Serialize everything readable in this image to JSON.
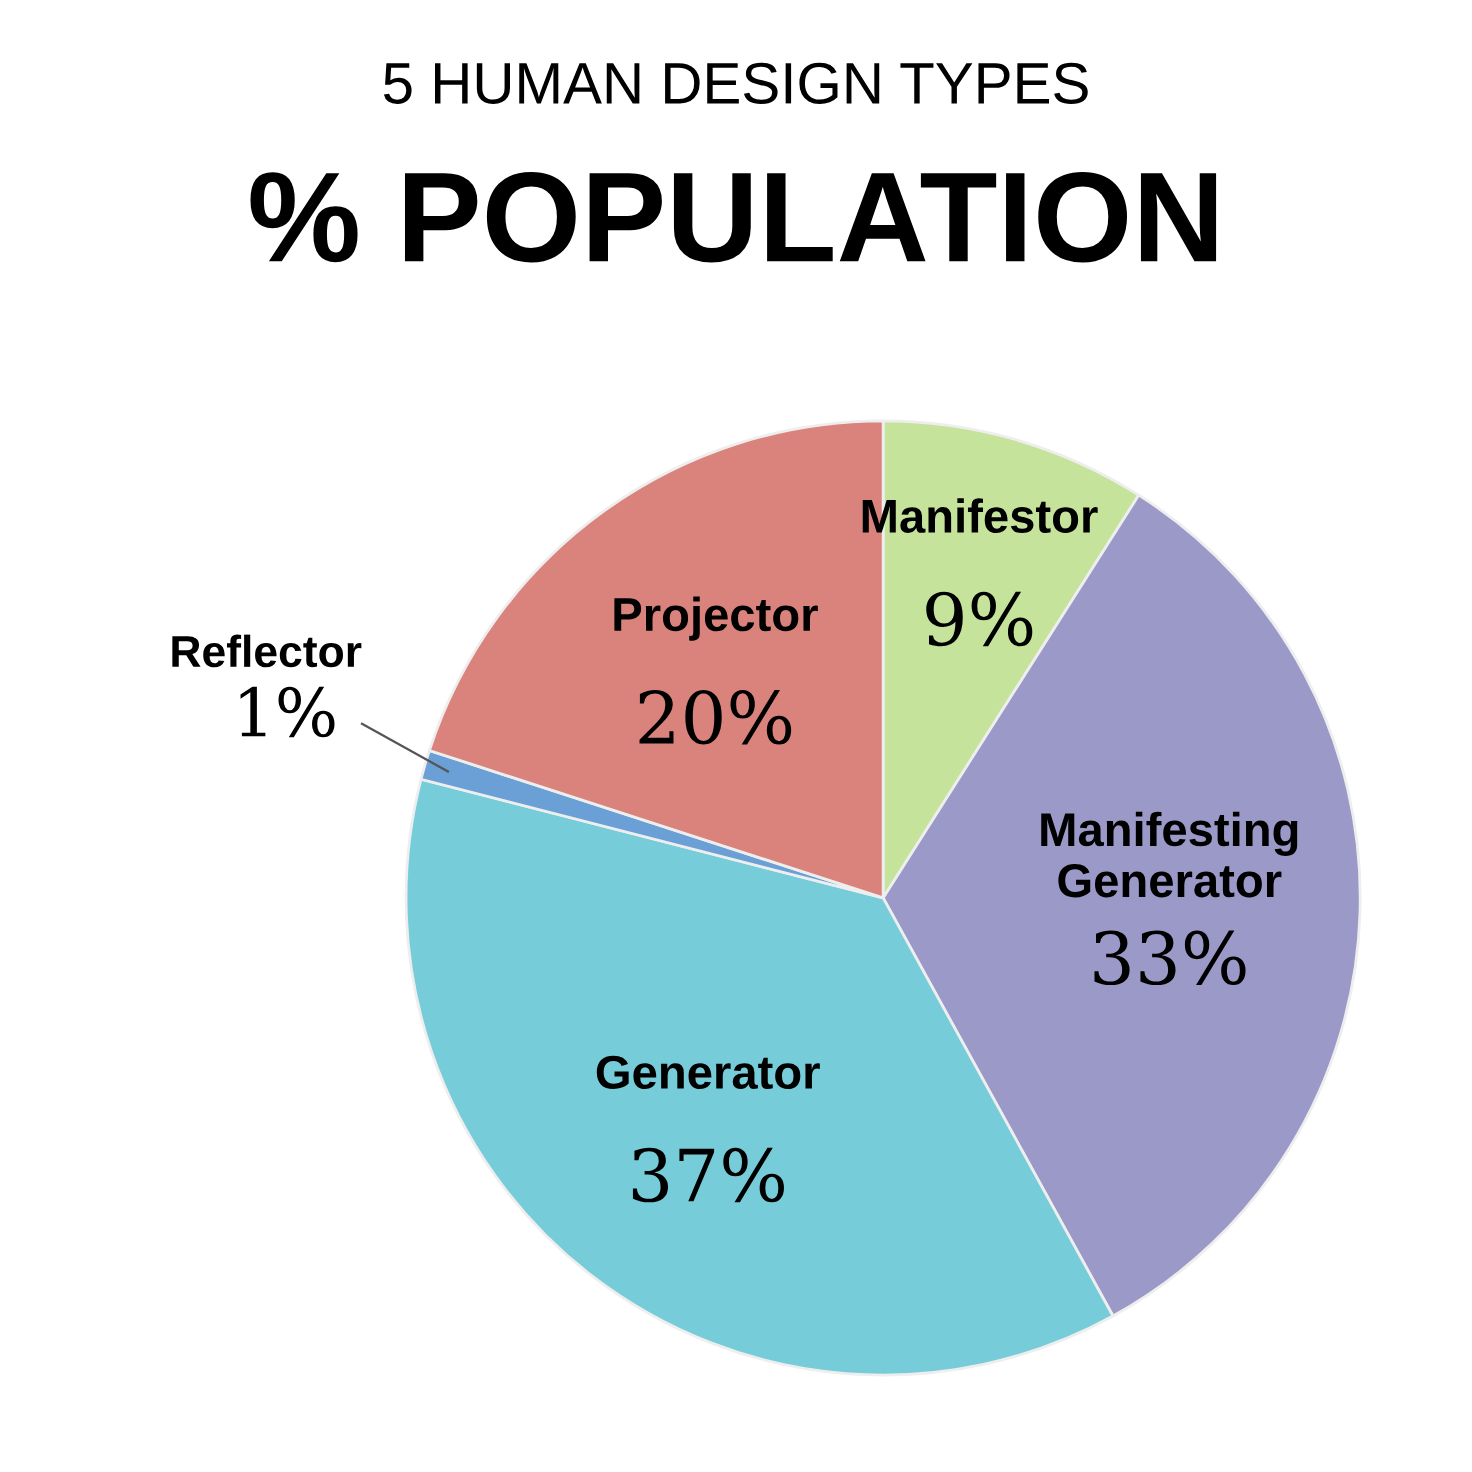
{
  "chart_data": {
    "type": "pie",
    "subtitle": "5 HUMAN DESIGN TYPES",
    "title": "% POPULATION",
    "categories": [
      "Manifestor",
      "Manifesting Generator",
      "Generator",
      "Reflector",
      "Projector"
    ],
    "values": [
      9,
      33,
      37,
      1,
      20
    ],
    "colors": [
      "#c6e39c",
      "#9b99c7",
      "#76ccd9",
      "#6aa0d6",
      "#d9837c"
    ],
    "value_labels": [
      "9%",
      "33%",
      "37%",
      "1%",
      "20%"
    ],
    "legend": false
  }
}
